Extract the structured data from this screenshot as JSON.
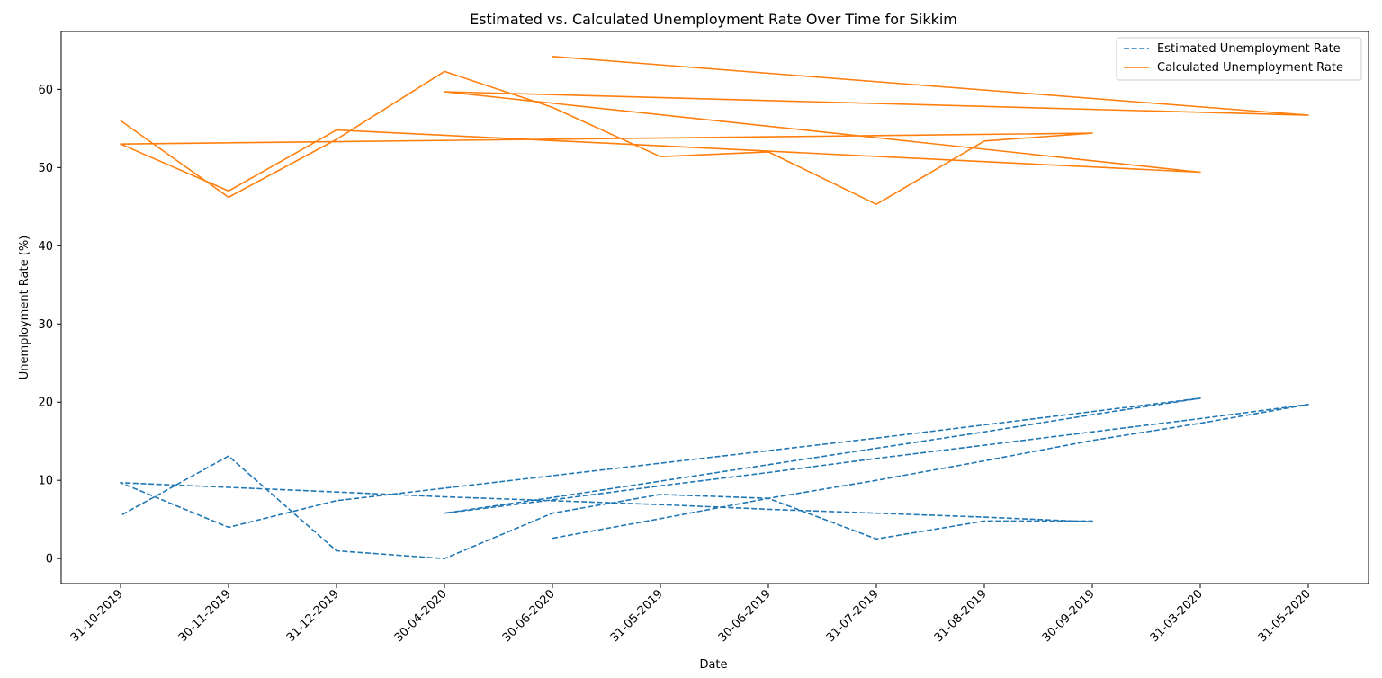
{
  "chart_data": {
    "type": "line",
    "title": "Estimated vs. Calculated Unemployment Rate Over Time for Sikkim",
    "xlabel": "Date",
    "ylabel": "Unemployment Rate (%)",
    "categories": [
      "31-10-2019",
      "30-11-2019",
      "31-12-2019",
      "30-04-2020",
      "30-06-2020",
      "31-05-2019",
      "30-06-2019",
      "31-07-2019",
      "31-08-2019",
      "30-09-2019",
      "31-03-2020",
      "31-05-2020"
    ],
    "yticks": [
      0,
      10,
      20,
      30,
      40,
      50,
      60
    ],
    "ylim": [
      -3.2,
      67.4
    ],
    "grid": false,
    "legend_position": "top-right",
    "series": [
      {
        "name": "Estimated Unemployment Rate",
        "color": "#1f77b4",
        "style": "dashed",
        "points": [
          [
            "30-06-2020",
            2.6
          ],
          [
            "31-05-2019",
            5.1
          ],
          [
            "30-06-2019",
            7.7
          ],
          [
            "31-07-2019",
            10.0
          ],
          [
            "31-08-2019",
            12.5
          ],
          [
            "30-09-2019",
            15.1
          ],
          [
            "31-03-2020",
            17.3
          ],
          [
            "31-05-2020",
            19.7
          ],
          [
            "31-05-2020",
            19.7
          ],
          [
            "31-03-2020",
            17.9
          ],
          [
            "30-09-2019",
            16.2
          ],
          [
            "31-08-2019",
            14.5
          ],
          [
            "31-07-2019",
            12.8
          ],
          [
            "30-06-2019",
            11.0
          ],
          [
            "31-05-2019",
            9.3
          ],
          [
            "30-06-2020",
            7.5
          ],
          [
            "30-04-2020",
            5.8
          ],
          [
            "30-04-2020",
            5.8
          ],
          [
            "30-06-2020",
            7.8
          ],
          [
            "31-05-2019",
            9.9
          ],
          [
            "30-06-2019",
            12.0
          ],
          [
            "31-07-2019",
            14.1
          ],
          [
            "31-08-2019",
            16.2
          ],
          [
            "30-09-2019",
            18.4
          ],
          [
            "31-03-2020",
            20.5
          ],
          [
            "31-03-2020",
            20.5
          ],
          [
            "30-09-2019",
            18.8
          ],
          [
            "31-08-2019",
            17.1
          ],
          [
            "31-07-2019",
            15.4
          ],
          [
            "30-06-2019",
            13.8
          ],
          [
            "31-05-2019",
            12.2
          ],
          [
            "30-06-2020",
            10.6
          ],
          [
            "30-04-2020",
            9.0
          ],
          [
            "31-12-2019",
            7.4
          ],
          [
            "30-11-2019",
            4.0
          ],
          [
            "31-10-2019",
            9.7
          ],
          [
            "31-10-2019",
            9.7
          ],
          [
            "30-11-2019",
            9.1
          ],
          [
            "31-12-2019",
            8.5
          ],
          [
            "30-04-2020",
            7.9
          ],
          [
            "30-06-2020",
            7.4
          ],
          [
            "31-05-2019",
            6.9
          ],
          [
            "30-06-2019",
            6.3
          ],
          [
            "31-07-2019",
            5.8
          ],
          [
            "31-08-2019",
            5.3
          ],
          [
            "30-09-2019",
            4.7
          ],
          [
            "30-09-2019",
            4.8
          ],
          [
            "31-08-2019",
            4.8
          ],
          [
            "31-07-2019",
            2.5
          ],
          [
            "30-06-2019",
            7.7
          ],
          [
            "31-05-2019",
            8.2
          ],
          [
            "30-06-2020",
            5.8
          ],
          [
            "30-04-2020",
            0.0
          ],
          [
            "31-12-2019",
            1.0
          ],
          [
            "30-11-2019",
            13.1
          ],
          [
            "31-10-2019",
            5.5
          ]
        ]
      },
      {
        "name": "Calculated Unemployment Rate",
        "color": "#ff7f0e",
        "style": "solid",
        "points": [
          [
            "31-10-2019",
            56.0
          ],
          [
            "30-11-2019",
            46.2
          ],
          [
            "31-12-2019",
            53.6
          ],
          [
            "30-04-2020",
            62.3
          ],
          [
            "30-06-2020",
            57.7
          ],
          [
            "31-05-2019",
            51.4
          ],
          [
            "30-06-2019",
            52.0
          ],
          [
            "31-07-2019",
            45.3
          ],
          [
            "31-08-2019",
            53.4
          ],
          [
            "30-09-2019",
            54.4
          ],
          [
            "30-09-2019",
            54.4
          ],
          [
            "31-10-2019",
            53.0
          ],
          [
            "30-11-2019",
            47.0
          ],
          [
            "31-12-2019",
            54.8
          ],
          [
            "31-03-2020",
            49.4
          ],
          [
            "31-03-2020",
            49.4
          ],
          [
            "30-04-2020",
            59.7
          ],
          [
            "31-05-2020",
            56.7
          ],
          [
            "30-06-2020",
            64.2
          ]
        ]
      }
    ]
  }
}
